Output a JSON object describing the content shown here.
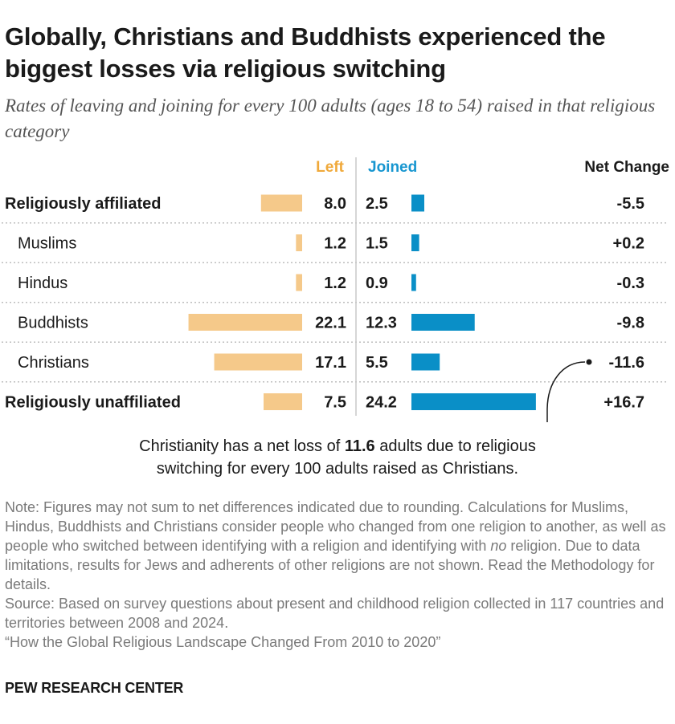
{
  "title": "Globally, Christians and Buddhists experienced the biggest losses via religious switching",
  "subtitle": "Rates of leaving and joining for every 100 adults (ages 18 to 54) raised in that religious category",
  "colors": {
    "left": "#f5c98a",
    "joined": "#0a8fc7",
    "left_label": "#f0a93a",
    "joined_label": "#1796d0",
    "divider": "#c8c8c8",
    "dots": "#bdbdbd"
  },
  "chart_data": {
    "type": "bar",
    "column_headers": {
      "left": "Left",
      "joined": "Joined",
      "net": "Net Change"
    },
    "categories": [
      "Religiously affiliated",
      "Muslims",
      "Hindus",
      "Buddhists",
      "Christians",
      "Religiously unaffiliated"
    ],
    "bold_categories": [
      "Religiously affiliated",
      "Religiously unaffiliated"
    ],
    "series": [
      {
        "name": "Left",
        "values": [
          8.0,
          1.2,
          1.2,
          22.1,
          17.1,
          7.5
        ],
        "labels": [
          "8.0",
          "1.2",
          "1.2",
          "22.1",
          "17.1",
          "7.5"
        ]
      },
      {
        "name": "Joined",
        "values": [
          2.5,
          1.5,
          0.9,
          12.3,
          5.5,
          24.2
        ],
        "labels": [
          "2.5",
          "1.5",
          "0.9",
          "12.3",
          "5.5",
          "24.2"
        ]
      }
    ],
    "net_change": [
      "-5.5",
      "+0.2",
      "-0.3",
      "-9.8",
      "-11.6",
      "+16.7"
    ]
  },
  "annotation": {
    "before": "Christianity has a net loss of ",
    "bold": "11.6",
    "after": " adults due to religious",
    "line2": "switching for every 100 adults raised as Christians."
  },
  "notes": {
    "note_a": "Note: Figures may not sum to net differences indicated due to rounding. Calculations for Muslims, Hindus, Buddhists and Christians consider people who changed from one religion to another, as well as people who switched between identifying with a religion and identifying with ",
    "note_italic": "no",
    "note_b": " religion. Due to data limitations, results for Jews and adherents of other religions are not shown. Read the Methodology for details.",
    "source": "Source: Based on survey questions about present and childhood religion collected in 117 countries and territories between 2008 and 2024.",
    "report": "“How the Global Religious Landscape Changed From 2010 to 2020”"
  },
  "footer": "PEW RESEARCH CENTER"
}
